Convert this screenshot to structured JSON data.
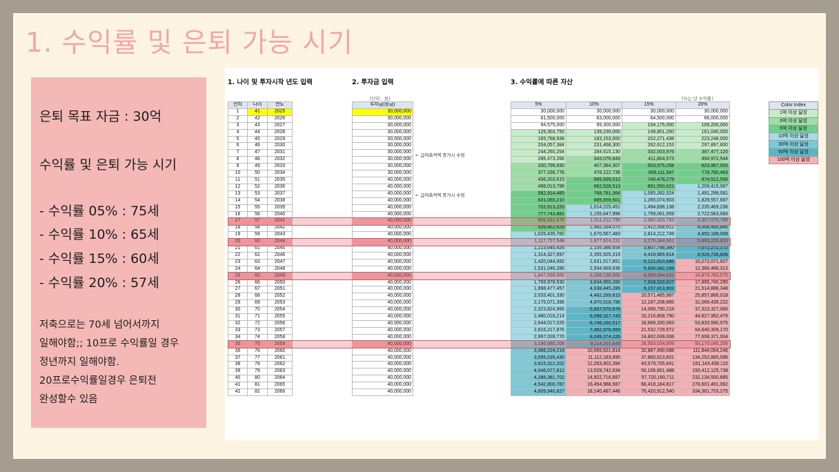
{
  "title": "1. 수익률 및 은퇴 가능 시기",
  "panel": {
    "goal": "은퇴 목표 자금 : 30억",
    "heading": "수익률 및 은퇴 가능 시기",
    "r05": "- 수익률 05% : 75세",
    "r10": "- 수익률 10% : 65세",
    "r15": "- 수익률 15% : 60세",
    "r20": "- 수익률 20% : 57세",
    "note1": "저축으로는 70세 넘어서까지",
    "note2": "일해야함;; 10프로 수익률일 경우",
    "note3": "정년까지 일해야함.",
    "note4": "20프로수익률일경우 은퇴전",
    "note5": "완성할수 있음"
  },
  "sheet": {
    "sec1": "1. 나이 및 투자시작 년도 입력",
    "sec2": "2. 투자금 입력",
    "sec3": "3. 수익률에 따른 자산",
    "unit_note": "[단위 : 원]",
    "rate_note": "[%는 년 수익률]",
    "h_year_no": "년차",
    "h_age": "나이",
    "h_year": "연도",
    "h_invest": "투자금(원금)",
    "h_5": "5%",
    "h_10": "10%",
    "h_15": "15%",
    "h_20": "20%",
    "arrow1": "← 급여축적액 증가시 수정",
    "arrow2": "← 급여축적액 증가시 수정"
  },
  "legend": {
    "title": "Color Index",
    "items": [
      "1억 이상 달성",
      "3억 이상 달성",
      "5억 이상 달성",
      "10억 이상 달성",
      "30억 이상 달성",
      "50억 이상 달성",
      "100억 이상 달성"
    ],
    "colors": [
      "#c7ecc9",
      "#9edfa8",
      "#70cf8a",
      "#a4dbe6",
      "#7ec8d6",
      "#5ab6c8",
      "#f4b0b4"
    ]
  },
  "colors": {
    "title": "#f0a8a4",
    "panel": "#f4b9b7",
    "highlight_row": "#f5a4a8",
    "yellow": "#ffff00"
  },
  "rows": [
    [
      1,
      41,
      2025,
      "30,000,000",
      "30,000,000",
      "30,000,000",
      "30,000,000",
      "30,000,000"
    ],
    [
      2,
      42,
      2026,
      "30,000,000",
      "61,500,000",
      "63,000,000",
      "64,500,000",
      "66,000,000"
    ],
    [
      3,
      43,
      2027,
      "30,000,000",
      "94,575,000",
      "99,300,000",
      "104,175,000",
      "109,200,000"
    ],
    [
      4,
      44,
      2028,
      "30,000,000",
      "129,303,750",
      "139,230,000",
      "149,801,250",
      "161,040,000"
    ],
    [
      5,
      45,
      2029,
      "30,000,000",
      "165,768,938",
      "183,153,000",
      "202,271,438",
      "223,248,000"
    ],
    [
      6,
      46,
      2030,
      "30,000,000",
      "204,057,384",
      "231,468,300",
      "262,612,153",
      "297,897,600"
    ],
    [
      7,
      47,
      2031,
      "30,000,000",
      "244,260,254",
      "284,615,130",
      "332,003,976",
      "387,477,120"
    ],
    [
      8,
      48,
      2032,
      "30,000,000",
      "286,473,266",
      "343,076,643",
      "411,804,573",
      "494,972,544"
    ],
    [
      9,
      49,
      2033,
      "30,000,000",
      "330,796,930",
      "407,384,307",
      "503,575,258",
      "623,967,053"
    ],
    [
      10,
      50,
      2034,
      "30,000,000",
      "377,336,776",
      "478,122,738",
      "609,111,547",
      "778,760,463"
    ],
    [
      11,
      51,
      2035,
      "40,000,000",
      "436,203,615",
      "565,935,012",
      "740,478,279",
      "974,512,556"
    ],
    [
      12,
      52,
      2036,
      "40,000,000",
      "498,013,796",
      "662,528,513",
      "891,550,021",
      "1,209,415,067"
    ],
    [
      13,
      53,
      2037,
      "40,000,000",
      "562,914,485",
      "768,781,364",
      "1,065,282,524",
      "1,491,298,081"
    ],
    [
      14,
      54,
      2038,
      "40,000,000",
      "631,060,210",
      "885,659,501",
      "1,265,074,903",
      "1,829,557,697"
    ],
    [
      15,
      55,
      2039,
      "40,000,000",
      "702,613,220",
      "1,014,225,451",
      "1,494,836,138",
      "2,235,469,236"
    ],
    [
      16,
      56,
      2040,
      "40,000,000",
      "777,743,881",
      "1,155,647,996",
      "1,759,061,559",
      "2,722,563,083"
    ],
    [
      17,
      57,
      2041,
      "40,000,000",
      "856,631,075",
      "1,311,212,795",
      "2,062,920,793",
      "3,307,075,700"
    ],
    [
      18,
      58,
      2042,
      "40,000,000",
      "939,462,629",
      "1,482,334,075",
      "2,412,358,912",
      "4,008,490,840"
    ],
    [
      19,
      59,
      2043,
      "40,000,000",
      "1,026,435,760",
      "1,670,567,483",
      "2,814,212,749",
      "4,850,189,008"
    ],
    [
      20,
      60,
      2044,
      "40,000,000",
      "1,117,757,548",
      "1,877,624,231",
      "3,276,344,661",
      "5,860,226,810"
    ],
    [
      21,
      61,
      2045,
      "40,000,000",
      "1,213,645,426",
      "2,105,386,654",
      "3,807,796,360",
      "7,072,272,172"
    ],
    [
      22,
      62,
      2046,
      "40,000,000",
      "1,314,327,697",
      "2,355,925,319",
      "4,418,965,814",
      "8,526,726,606"
    ],
    [
      23,
      63,
      2047,
      "40,000,000",
      "1,420,044,082",
      "2,631,517,851",
      "5,121,810,686",
      "10,272,071,927"
    ],
    [
      24,
      64,
      2048,
      "40,000,000",
      "1,531,046,286",
      "2,934,669,636",
      "5,930,082,289",
      "12,366,486,313"
    ],
    [
      25,
      65,
      2049,
      "40,000,000",
      "1,647,598,600",
      "3,268,136,600",
      "6,859,594,633",
      "14,879,783,575"
    ],
    [
      26,
      66,
      2050,
      "40,000,000",
      "1,769,978,530",
      "3,634,950,260",
      "7,928,533,827",
      "17,895,740,290"
    ],
    [
      27,
      67,
      2051,
      "40,000,000",
      "1,898,477,457",
      "4,038,445,286",
      "9,157,813,902",
      "21,514,888,348"
    ],
    [
      28,
      68,
      2052,
      "40,000,000",
      "2,033,401,330",
      "4,482,289,815",
      "10,571,485,987",
      "25,857,866,018"
    ],
    [
      29,
      69,
      2053,
      "40,000,000",
      "2,175,071,396",
      "4,970,518,796",
      "12,197,208,885",
      "31,069,439,222"
    ],
    [
      30,
      70,
      2054,
      "40,000,000",
      "2,323,824,966",
      "5,507,570,676",
      "14,066,790,218",
      "37,323,327,066"
    ],
    [
      31,
      71,
      2055,
      "40,000,000",
      "2,480,016,214",
      "6,098,327,743",
      "16,216,808,750",
      "44,827,992,479"
    ],
    [
      32,
      72,
      2056,
      "40,000,000",
      "2,644,017,025",
      "6,748,160,517",
      "18,689,330,063",
      "53,833,590,975"
    ],
    [
      33,
      73,
      2057,
      "40,000,000",
      "2,816,217,876",
      "7,462,976,569",
      "21,532,729,572",
      "64,640,309,170"
    ],
    [
      34,
      74,
      2058,
      "40,000,000",
      "2,997,028,770",
      "8,249,274,226",
      "24,802,639,008",
      "77,608,371,004"
    ],
    [
      35,
      75,
      2059,
      "40,000,000",
      "3,186,880,209",
      "9,114,201,649",
      "28,563,034,859",
      "93,170,045,205"
    ],
    [
      36,
      76,
      2060,
      "40,000,000",
      "3,386,224,219",
      "10,065,621,814",
      "32,887,490,088",
      "111,844,054,246"
    ],
    [
      37,
      77,
      2061,
      "40,000,000",
      "3,595,535,430",
      "11,112,183,995",
      "37,860,613,601",
      "134,252,865,096"
    ],
    [
      38,
      78,
      2062,
      "40,000,000",
      "3,815,312,202",
      "12,263,402,394",
      "43,579,705,641",
      "161,143,438,115"
    ],
    [
      39,
      79,
      2063,
      "40,000,000",
      "4,046,077,812",
      "13,529,742,634",
      "50,156,661,488",
      "193,412,125,738"
    ],
    [
      40,
      80,
      2064,
      "40,000,000",
      "4,288,381,702",
      "14,922,716,897",
      "57,720,160,711",
      "232,134,550,885"
    ],
    [
      41,
      81,
      2065,
      "40,000,000",
      "4,542,800,787",
      "16,454,988,587",
      "66,418,184,817",
      "278,601,461,062"
    ],
    [
      42,
      82,
      2066,
      "40,000,000",
      "4,809,940,827",
      "18,140,487,446",
      "76,420,912,540",
      "334,361,753,275"
    ]
  ],
  "highlight_years": [
    17,
    20,
    25,
    35
  ]
}
